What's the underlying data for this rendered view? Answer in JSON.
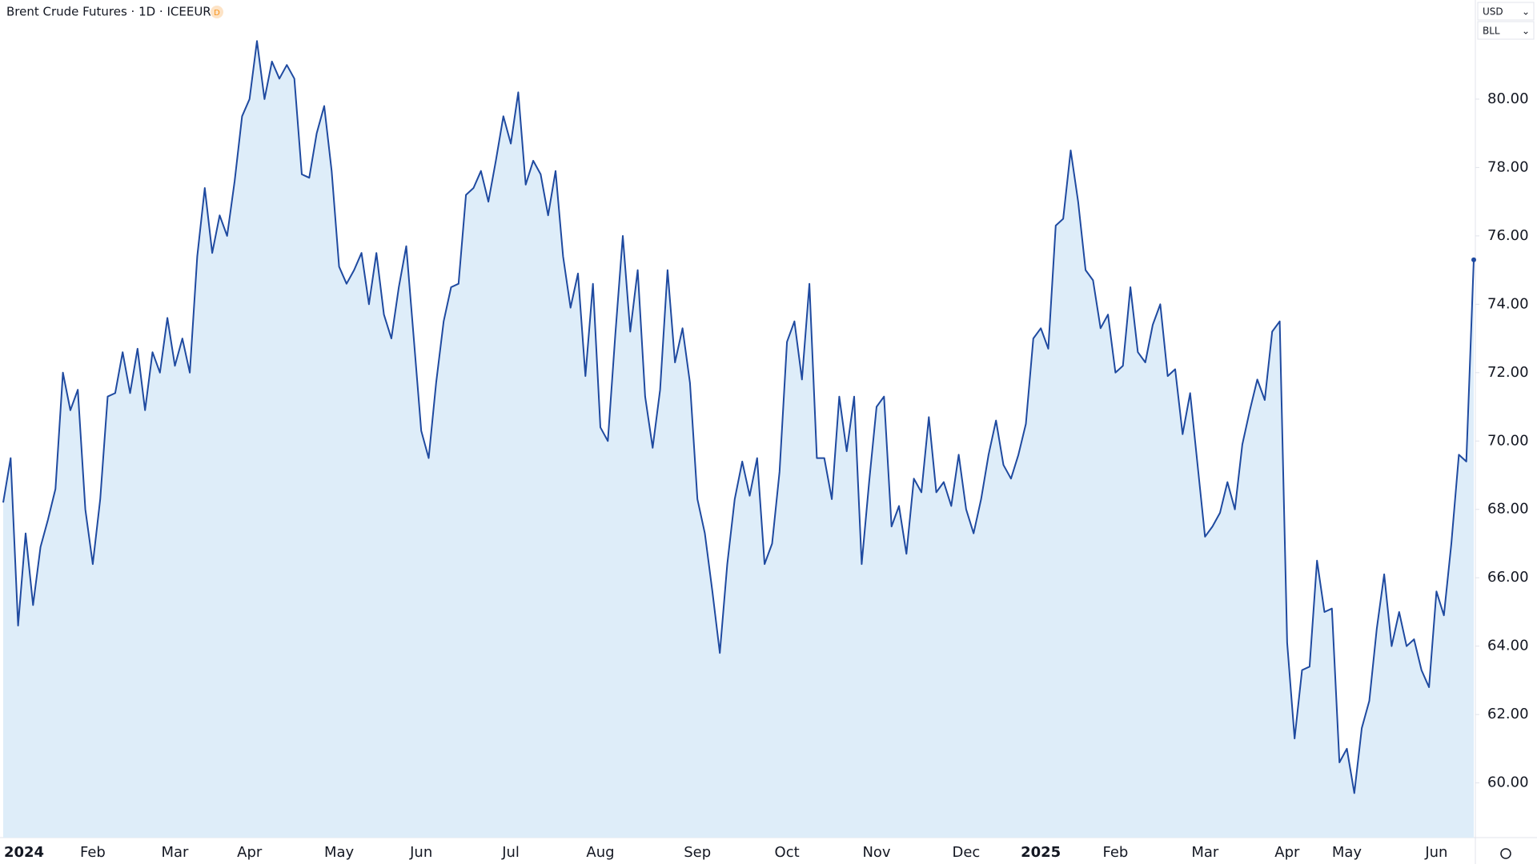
{
  "chart_data": {
    "type": "area",
    "title": "Brent Crude Futures · 1D · ICEEUR",
    "badge": "D",
    "currency": "USD",
    "unit": "BLL",
    "color": "#1f4aa0",
    "fill": "#deedf9",
    "categories": [
      "2024",
      null,
      null,
      null,
      null,
      null,
      null,
      null,
      null,
      null,
      null,
      null,
      "Feb",
      null,
      null,
      null,
      null,
      null,
      null,
      null,
      null,
      null,
      null,
      "Mar",
      null,
      null,
      null,
      null,
      null,
      null,
      null,
      null,
      null,
      "Apr",
      null,
      null,
      null,
      null,
      null,
      null,
      null,
      null,
      null,
      null,
      null,
      "May",
      null,
      null,
      null,
      null,
      null,
      null,
      null,
      null,
      null,
      null,
      "Jun",
      null,
      null,
      null,
      null,
      null,
      null,
      null,
      null,
      null,
      null,
      null,
      "Jul",
      null,
      null,
      null,
      null,
      null,
      null,
      null,
      null,
      null,
      null,
      null,
      "Aug",
      null,
      null,
      null,
      null,
      null,
      null,
      null,
      null,
      null,
      null,
      null,
      null,
      "Sep",
      null,
      null,
      null,
      null,
      null,
      null,
      null,
      null,
      null,
      null,
      null,
      "Oct",
      null,
      null,
      null,
      null,
      null,
      null,
      null,
      null,
      null,
      null,
      null,
      "Nov",
      null,
      null,
      null,
      null,
      null,
      null,
      null,
      null,
      null,
      null,
      null,
      "Dec",
      null,
      null,
      null,
      null,
      null,
      null,
      null,
      null,
      null,
      "2025",
      null,
      null,
      null,
      null,
      null,
      null,
      null,
      null,
      null,
      "Feb",
      null,
      null,
      null,
      null,
      null,
      null,
      null,
      null,
      null,
      null,
      null,
      "Mar",
      null,
      null,
      null,
      null,
      null,
      null,
      null,
      null,
      null,
      null,
      "Apr",
      null,
      null,
      null,
      null,
      null,
      null,
      null,
      "May",
      null,
      null,
      null,
      null,
      null,
      null,
      null,
      null,
      null,
      null,
      null,
      "Jun",
      null,
      null,
      null,
      null,
      null
    ],
    "values": [
      68.2,
      69.5,
      64.6,
      67.3,
      65.2,
      66.9,
      67.7,
      68.6,
      72.0,
      70.9,
      71.5,
      68.0,
      66.4,
      68.3,
      71.3,
      71.4,
      72.6,
      71.4,
      72.7,
      70.9,
      72.6,
      72.0,
      73.6,
      72.2,
      73.0,
      72.0,
      75.4,
      77.4,
      75.5,
      76.6,
      76.0,
      77.6,
      79.5,
      80.0,
      81.7,
      80.0,
      81.1,
      80.6,
      81.0,
      80.6,
      77.8,
      77.7,
      79.0,
      79.8,
      77.9,
      75.1,
      74.6,
      75.0,
      75.5,
      74.0,
      75.5,
      73.7,
      73.0,
      74.5,
      75.7,
      73.0,
      70.3,
      69.5,
      71.7,
      73.5,
      74.5,
      74.6,
      77.2,
      77.4,
      77.9,
      77.0,
      78.2,
      79.5,
      78.7,
      80.2,
      77.5,
      78.2,
      77.8,
      76.6,
      77.9,
      75.4,
      73.9,
      74.9,
      71.9,
      74.6,
      70.4,
      70.0,
      73.1,
      76.0,
      73.2,
      75.0,
      71.3,
      69.8,
      71.5,
      75.0,
      72.3,
      73.3,
      71.7,
      68.3,
      67.3,
      65.6,
      63.8,
      66.4,
      68.3,
      69.4,
      68.4,
      69.5,
      66.4,
      67.0,
      69.1,
      72.9,
      73.5,
      71.8,
      74.6,
      69.5,
      69.5,
      68.3,
      71.3,
      69.7,
      71.3,
      66.4,
      68.8,
      71.0,
      71.3,
      67.5,
      68.1,
      66.7,
      68.9,
      68.5,
      70.7,
      68.5,
      68.8,
      68.1,
      69.6,
      68.0,
      67.3,
      68.3,
      69.6,
      70.6,
      69.3,
      68.9,
      69.6,
      70.5,
      73.0,
      73.3,
      72.7,
      76.3,
      76.5,
      78.5,
      77.0,
      75.0,
      74.7,
      73.3,
      73.7,
      72.0,
      72.2,
      74.5,
      72.6,
      72.3,
      73.4,
      74.0,
      71.9,
      72.1,
      70.2,
      71.4,
      69.3,
      67.2,
      67.5,
      67.9,
      68.8,
      68.0,
      69.9,
      70.9,
      71.8,
      71.2,
      73.2,
      73.5,
      64.1,
      61.3,
      63.3,
      63.4,
      66.5,
      65.0,
      65.1,
      60.6,
      61.0,
      59.7,
      61.6,
      62.4,
      64.5,
      66.1,
      64.0,
      65.0,
      64.0,
      64.2,
      63.3,
      62.8,
      65.6,
      64.9,
      67.0,
      69.6,
      69.4,
      75.3
    ],
    "ylim": [
      58.4,
      82.9
    ],
    "yticks": [
      {
        "value": 60,
        "label": "60.00"
      },
      {
        "value": 62,
        "label": "62.00"
      },
      {
        "value": 64,
        "label": "64.00"
      },
      {
        "value": 66,
        "label": "66.00"
      },
      {
        "value": 68,
        "label": "68.00"
      },
      {
        "value": 70,
        "label": "70.00"
      },
      {
        "value": 72,
        "label": "72.00"
      },
      {
        "value": 74,
        "label": "74.00"
      },
      {
        "value": 76,
        "label": "76.00"
      },
      {
        "value": 78,
        "label": "78.00"
      },
      {
        "value": 80,
        "label": "80.00"
      }
    ],
    "grid": false
  }
}
